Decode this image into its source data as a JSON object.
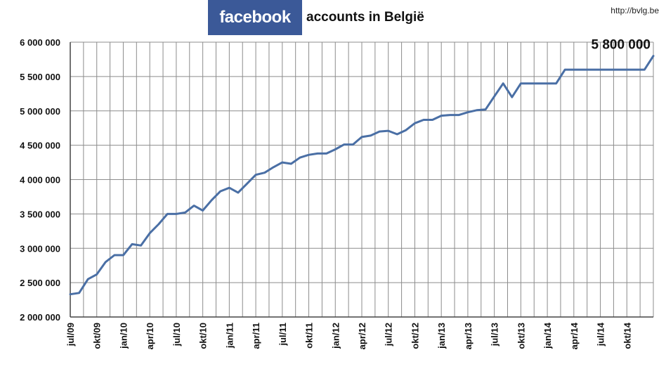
{
  "header": {
    "logo_text": "facebook",
    "logo_color": "#3b5998",
    "title": "accounts in België",
    "source": "http://bvlg.be"
  },
  "chart_data": {
    "type": "line",
    "title": "facebook accounts in België",
    "xlabel": "",
    "ylabel": "",
    "ylim": [
      2000000,
      6000000
    ],
    "yticks": [
      2000000,
      2500000,
      3000000,
      3500000,
      4000000,
      4500000,
      5000000,
      5500000,
      6000000
    ],
    "ytick_labels": [
      "2 000 000",
      "2 500 000",
      "3 000 000",
      "3 500 000",
      "4 000 000",
      "4 500 000",
      "5 000 000",
      "5 500 000",
      "6 000 000"
    ],
    "x_labels": [
      "jul/09",
      "okt/09",
      "jan/10",
      "apr/10",
      "jul/10",
      "okt/10",
      "jan/11",
      "apr/11",
      "jul/11",
      "okt/11",
      "jan/12",
      "apr/12",
      "jul/12",
      "okt/12",
      "jan/13",
      "apr/13",
      "jul/13",
      "okt/13",
      "jan/14",
      "apr/14",
      "jul/14",
      "okt/14"
    ],
    "x": [
      "jul/09",
      "aug/09",
      "sep/09",
      "okt/09",
      "nov/09",
      "dec/09",
      "jan/10",
      "feb/10",
      "mrt/10",
      "apr/10",
      "mei/10",
      "jun/10",
      "jul/10",
      "aug/10",
      "sep/10",
      "okt/10",
      "nov/10",
      "dec/10",
      "jan/11",
      "feb/11",
      "mrt/11",
      "apr/11",
      "mei/11",
      "jun/11",
      "jul/11",
      "aug/11",
      "sep/11",
      "okt/11",
      "nov/11",
      "dec/11",
      "jan/12",
      "feb/12",
      "mrt/12",
      "apr/12",
      "mei/12",
      "jun/12",
      "jul/12",
      "aug/12",
      "sep/12",
      "okt/12",
      "nov/12",
      "dec/12",
      "jan/13",
      "feb/13",
      "mrt/13",
      "apr/13",
      "mei/13",
      "jun/13",
      "jul/13",
      "aug/13",
      "sep/13",
      "okt/13",
      "nov/13",
      "dec/13",
      "jan/14",
      "feb/14",
      "mrt/14",
      "apr/14",
      "mei/14",
      "jun/14",
      "jul/14",
      "aug/14",
      "sep/14",
      "okt/14",
      "nov/14",
      "dec/14",
      "jan/15"
    ],
    "series": [
      {
        "color": "#4a6fa5",
        "values": [
          2330000,
          2350000,
          2550000,
          2620000,
          2800000,
          2900000,
          2900000,
          3060000,
          3040000,
          3220000,
          3350000,
          3500000,
          3500000,
          3520000,
          3620000,
          3550000,
          3700000,
          3830000,
          3880000,
          3810000,
          3940000,
          4070000,
          4100000,
          4180000,
          4250000,
          4230000,
          4320000,
          4360000,
          4380000,
          4380000,
          4440000,
          4510000,
          4510000,
          4620000,
          4640000,
          4700000,
          4710000,
          4660000,
          4720000,
          4820000,
          4870000,
          4870000,
          4930000,
          4940000,
          4940000,
          4980000,
          5010000,
          5020000,
          5210000,
          5400000,
          5200000,
          5400000,
          5400000,
          5400000,
          5400000,
          5400000,
          5600000,
          5600000,
          5600000,
          5600000,
          5600000,
          5600000,
          5600000,
          5600000,
          5600000,
          5600000,
          5800000
        ]
      }
    ],
    "annotation": "5 800 000",
    "grid": true,
    "legend": "none"
  }
}
